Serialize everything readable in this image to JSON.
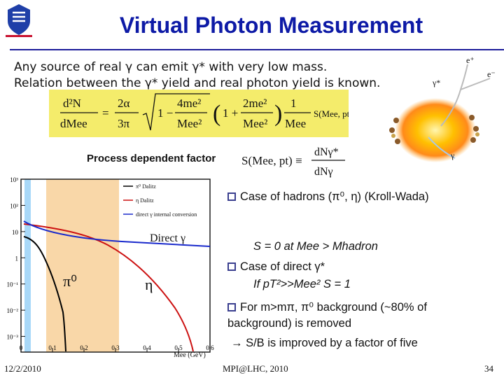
{
  "title": "Virtual Photon Measurement",
  "intro": {
    "line1": "Any source of real γ can emit γ* with very low mass.",
    "line2": "Relation between the γ* yield and real photon yield is known."
  },
  "formula": {
    "lhs_num": "d²N",
    "lhs_den": "dMee",
    "c1_num": "2α",
    "c1_den": "3π",
    "sqrt_num": "4me²",
    "sqrt_den": "Mee²",
    "par_num": "2me²",
    "par_den": "Mee²",
    "inv_num": "1",
    "inv_den": "Mee",
    "tail": "S(Mee, pt) dNγ",
    "def_lhs": "S(Mee, pt) ≡",
    "def_num": "dNγ*",
    "def_den": "dNγ"
  },
  "process_label": "Process dependent factor",
  "diagram": {
    "eplus": "e⁺",
    "eminus": "e⁻",
    "gstar": "γ*",
    "gamma": "γ"
  },
  "plot": {
    "y_ticks": [
      "10³",
      "10²",
      "10",
      "1",
      "10⁻¹",
      "10⁻²",
      "10⁻³"
    ],
    "x_ticks": [
      "0",
      "0.1",
      "0.2",
      "0.3",
      "0.4",
      "0.5",
      "0.6"
    ],
    "xlabel": "Mee (GeV)",
    "legend": [
      "π⁰ Dalitz",
      "η Dalitz",
      "direct γ internal conversion"
    ],
    "label_direct": "Direct γ",
    "label_pi0": "π⁰",
    "label_eta": "η",
    "colors": {
      "pi0": "#000000",
      "eta": "#cc1111",
      "direct": "#1a2acc",
      "band_blue": "#a8d8f8",
      "band_orange": "#f9d7a8"
    }
  },
  "bullets": {
    "b1": "Case of hadrons (π⁰, η) (Kroll-Wada)",
    "b1_sub": "S = 0 at Mee > Mhadron",
    "b2": "Case of direct γ*",
    "b2_sub": "If pT²>>Mee²  S = 1",
    "b3": "For m>mπ, π⁰ background (~80% of background) is removed",
    "b3_arrow": "→ S/B is improved by a factor of five"
  },
  "footer": {
    "date": "12/2/2010",
    "center": "MPI@LHC, 2010",
    "page": "34"
  }
}
